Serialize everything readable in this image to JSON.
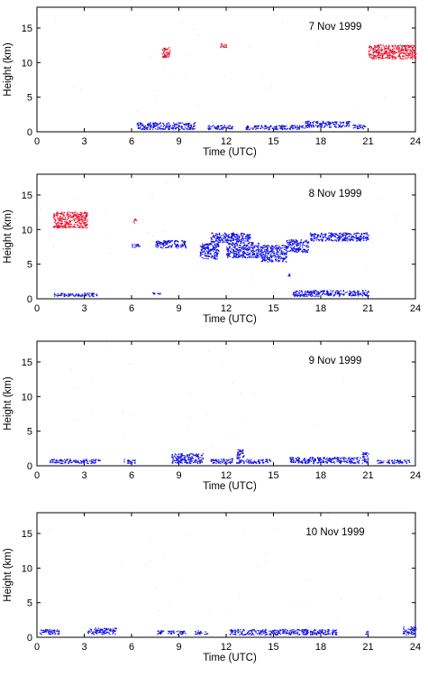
{
  "chart_data": [
    {
      "type": "scatter",
      "title": "7 Nov 1999",
      "xlabel": "Time (UTC)",
      "ylabel": "Height (km)",
      "xlim": [
        0,
        24
      ],
      "ylim": [
        0,
        18
      ],
      "xticks": [
        0,
        3,
        6,
        9,
        12,
        15,
        18,
        21,
        24
      ],
      "yticks": [
        0,
        5,
        10,
        15
      ],
      "series": [
        {
          "color": "#e8102a",
          "segments": [
            {
              "x": [
                7.9,
                8.4
              ],
              "y": [
                10.8,
                12.4
              ]
            },
            {
              "x": [
                11.6,
                12.0
              ],
              "y": [
                12.2,
                12.8
              ]
            },
            {
              "x": [
                21.0,
                24.0
              ],
              "y": [
                10.6,
                12.6
              ]
            }
          ]
        },
        {
          "color": "#1010e6",
          "segments": [
            {
              "x": [
                6.3,
                10.0
              ],
              "y": [
                0.4,
                1.4
              ]
            },
            {
              "x": [
                10.8,
                12.4
              ],
              "y": [
                0.4,
                1.0
              ]
            },
            {
              "x": [
                13.2,
                17.0
              ],
              "y": [
                0.4,
                1.0
              ]
            },
            {
              "x": [
                17.0,
                19.8
              ],
              "y": [
                0.7,
                1.6
              ]
            },
            {
              "x": [
                20.0,
                20.8
              ],
              "y": [
                0.5,
                1.1
              ]
            }
          ]
        }
      ]
    },
    {
      "type": "scatter",
      "title": "8 Nov 1999",
      "xlabel": "Time (UTC)",
      "ylabel": "Height (km)",
      "xlim": [
        0,
        24
      ],
      "ylim": [
        0,
        18
      ],
      "xticks": [
        0,
        3,
        6,
        9,
        12,
        15,
        18,
        21,
        24
      ],
      "yticks": [
        0,
        5,
        10,
        15
      ],
      "series": [
        {
          "color": "#e8102a",
          "segments": [
            {
              "x": [
                1.0,
                3.2
              ],
              "y": [
                10.3,
                12.6
              ]
            },
            {
              "x": [
                6.1,
                6.3
              ],
              "y": [
                11.0,
                11.6
              ]
            }
          ]
        },
        {
          "color": "#1010e6",
          "segments": [
            {
              "x": [
                1.0,
                3.8
              ],
              "y": [
                0.4,
                0.9
              ]
            },
            {
              "x": [
                6.0,
                6.5
              ],
              "y": [
                7.5,
                8.0
              ]
            },
            {
              "x": [
                7.5,
                9.5
              ],
              "y": [
                7.4,
                8.5
              ]
            },
            {
              "x": [
                10.3,
                11.5
              ],
              "y": [
                5.8,
                8.1
              ]
            },
            {
              "x": [
                11.0,
                13.5
              ],
              "y": [
                8.2,
                9.6
              ]
            },
            {
              "x": [
                12.0,
                14.2
              ],
              "y": [
                6.0,
                8.2
              ]
            },
            {
              "x": [
                14.2,
                15.8
              ],
              "y": [
                5.4,
                7.8
              ]
            },
            {
              "x": [
                15.8,
                17.2
              ],
              "y": [
                6.8,
                8.6
              ]
            },
            {
              "x": [
                17.3,
                21.0
              ],
              "y": [
                8.4,
                9.6
              ]
            },
            {
              "x": [
                16.2,
                21.0
              ],
              "y": [
                0.4,
                1.3
              ]
            },
            {
              "x": [
                15.9,
                16.1
              ],
              "y": [
                3.3,
                3.7
              ]
            },
            {
              "x": [
                7.3,
                7.8
              ],
              "y": [
                0.6,
                1.0
              ]
            }
          ]
        }
      ]
    },
    {
      "type": "scatter",
      "title": "9 Nov 1999",
      "xlabel": "Time (UTC)",
      "ylabel": "Height (km)",
      "xlim": [
        0,
        24
      ],
      "ylim": [
        0,
        18
      ],
      "xticks": [
        0,
        3,
        6,
        9,
        12,
        15,
        18,
        21,
        24
      ],
      "yticks": [
        0,
        5,
        10,
        15
      ],
      "series": [
        {
          "color": "#1010e6",
          "segments": [
            {
              "x": [
                0.8,
                4.0
              ],
              "y": [
                0.4,
                1.0
              ]
            },
            {
              "x": [
                5.5,
                6.2
              ],
              "y": [
                0.4,
                1.0
              ]
            },
            {
              "x": [
                8.5,
                10.5
              ],
              "y": [
                0.4,
                1.8
              ]
            },
            {
              "x": [
                11.0,
                12.4
              ],
              "y": [
                0.4,
                1.1
              ]
            },
            {
              "x": [
                12.6,
                13.1
              ],
              "y": [
                0.4,
                2.4
              ]
            },
            {
              "x": [
                13.2,
                14.8
              ],
              "y": [
                0.4,
                1.0
              ]
            },
            {
              "x": [
                16.0,
                20.5
              ],
              "y": [
                0.4,
                1.3
              ]
            },
            {
              "x": [
                20.6,
                21.0
              ],
              "y": [
                0.4,
                2.0
              ]
            },
            {
              "x": [
                21.5,
                23.6
              ],
              "y": [
                0.4,
                0.9
              ]
            }
          ]
        }
      ]
    },
    {
      "type": "scatter",
      "title": "10 Nov 1999",
      "xlabel": "Time (UTC)",
      "ylabel": "Height (km)",
      "xlim": [
        0,
        24
      ],
      "ylim": [
        0,
        18
      ],
      "xticks": [
        0,
        3,
        6,
        9,
        12,
        15,
        18,
        21,
        24
      ],
      "yticks": [
        0,
        5,
        10,
        15
      ],
      "series": [
        {
          "color": "#1010e6",
          "segments": [
            {
              "x": [
                0.1,
                1.4
              ],
              "y": [
                0.5,
                1.2
              ]
            },
            {
              "x": [
                3.2,
                5.0
              ],
              "y": [
                0.5,
                1.4
              ]
            },
            {
              "x": [
                7.6,
                9.4
              ],
              "y": [
                0.5,
                1.0
              ]
            },
            {
              "x": [
                10.0,
                10.8
              ],
              "y": [
                0.5,
                1.0
              ]
            },
            {
              "x": [
                12.2,
                19.0
              ],
              "y": [
                0.4,
                1.2
              ]
            },
            {
              "x": [
                20.8,
                21.0
              ],
              "y": [
                0.5,
                1.0
              ]
            },
            {
              "x": [
                23.2,
                24.0
              ],
              "y": [
                0.4,
                1.6
              ]
            }
          ]
        }
      ]
    }
  ]
}
